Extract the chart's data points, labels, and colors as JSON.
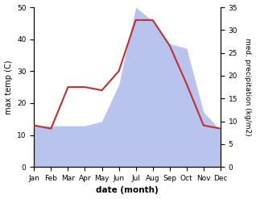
{
  "months": [
    "Jan",
    "Feb",
    "Mar",
    "Apr",
    "May",
    "Jun",
    "Jul",
    "Aug",
    "Sep",
    "Oct",
    "Nov",
    "Dec"
  ],
  "temperature": [
    13.0,
    12.0,
    25.0,
    25.0,
    24.0,
    30.0,
    46.0,
    46.0,
    38.0,
    26.0,
    13.0,
    12.0
  ],
  "precipitation": [
    9.0,
    9.0,
    9.0,
    9.0,
    10.0,
    18.0,
    35.0,
    32.0,
    27.0,
    26.0,
    12.0,
    8.0
  ],
  "temp_color": "#c03030",
  "precip_color": "#b8c4ee",
  "temp_ylim": [
    0,
    50
  ],
  "precip_ylim": [
    0,
    35
  ],
  "temp_yticks": [
    0,
    10,
    20,
    30,
    40,
    50
  ],
  "precip_yticks": [
    0,
    5,
    10,
    15,
    20,
    25,
    30,
    35
  ],
  "xlabel": "date (month)",
  "ylabel_left": "max temp (C)",
  "ylabel_right": "med. precipitation (kg/m2)",
  "label_fontsize": 7,
  "tick_fontsize": 6.5
}
